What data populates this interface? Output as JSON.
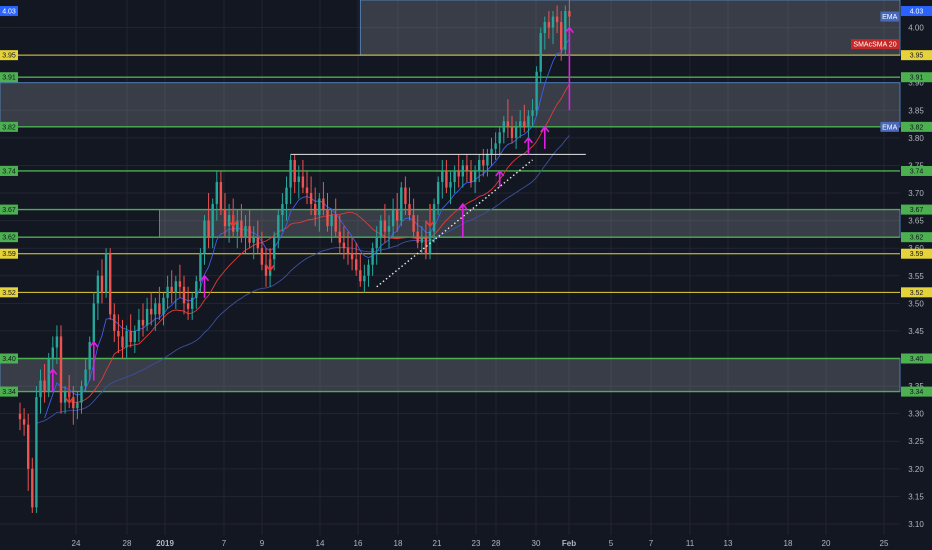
{
  "chart_data": {
    "type": "candlestick",
    "title": "",
    "xlabel": "",
    "ylabel": "",
    "ylim": [
      3.08,
      4.05
    ],
    "grid": true,
    "legend": "none",
    "colors": {
      "background": "#131722",
      "grid": "#232632",
      "up": "#26a69a",
      "down": "#ef5350",
      "ema_fast": "#3f5ee8",
      "ema_slow": "#3e4f9c",
      "sma20": "#e03b3b",
      "zone_fill": "#9aa0aa",
      "level_green": "#4caf50",
      "level_yellow": "#e6d23a",
      "arrow_magenta": "#e020e0",
      "arrow_red": "#e53935",
      "trend_white": "#e6e6e6"
    },
    "y_ticks": [
      "3.10",
      "3.15",
      "3.20",
      "3.25",
      "3.30",
      "3.35",
      "3.40",
      "3.45",
      "3.50",
      "3.55",
      "3.60",
      "3.65",
      "3.70",
      "3.75",
      "3.80",
      "3.85",
      "3.90",
      "3.95",
      "4.00"
    ],
    "x_ticks": [
      "24",
      "28",
      "2019",
      "7",
      "9",
      "14",
      "16",
      "18",
      "21",
      "23",
      "28",
      "30",
      "Feb",
      "5",
      "7",
      "11",
      "13",
      "18",
      "20",
      "25"
    ],
    "levels": [
      {
        "label": "4.03",
        "value": 4.03,
        "color": "#2962ff",
        "kind": "price"
      },
      {
        "label": "3.95",
        "value": 3.95,
        "color": "#e6d23a",
        "kind": "yellow"
      },
      {
        "label": "3.91",
        "value": 3.91,
        "color": "#4caf50",
        "kind": "green"
      },
      {
        "label": "3.82",
        "value": 3.82,
        "color": "#4caf50",
        "kind": "green"
      },
      {
        "label": "3.74",
        "value": 3.74,
        "color": "#4caf50",
        "kind": "green"
      },
      {
        "label": "3.67",
        "value": 3.67,
        "color": "#4caf50",
        "kind": "green"
      },
      {
        "label": "3.62",
        "value": 3.62,
        "color": "#4caf50",
        "kind": "green"
      },
      {
        "label": "3.59",
        "value": 3.59,
        "color": "#e6d23a",
        "kind": "yellow"
      },
      {
        "label": "3.52",
        "value": 3.52,
        "color": "#e6d23a",
        "kind": "yellow"
      },
      {
        "label": "3.40",
        "value": 3.4,
        "color": "#4caf50",
        "kind": "green"
      },
      {
        "label": "3.34",
        "value": 3.34,
        "color": "#4caf50",
        "kind": "green"
      }
    ],
    "zones": [
      {
        "from": 3.95,
        "to": 4.05,
        "start_index": 83
      },
      {
        "from": 3.82,
        "to": 3.9,
        "start_index": 0
      },
      {
        "from": 3.62,
        "to": 3.67,
        "start_index": 34
      },
      {
        "from": 3.34,
        "to": 3.4,
        "start_index": 0
      }
    ],
    "indicator_tags": [
      {
        "label": "EMA",
        "value": 4.02,
        "color": "#4a69b8"
      },
      {
        "label": "SMAcSMA 20",
        "value": 3.97,
        "color": "#c62828"
      },
      {
        "label": "EMA",
        "value": 3.82,
        "color": "#4a69b8"
      }
    ],
    "resistance_line": {
      "value": 3.77,
      "from_index": 66,
      "to_index": 138
    },
    "trendline": {
      "from_index": 87,
      "from_value": 3.53,
      "to_index": 125,
      "to_value": 3.76
    },
    "arrows_up": [
      {
        "index": 8,
        "from": 3.34,
        "to": 3.38
      },
      {
        "index": 18,
        "from": 3.36,
        "to": 3.43
      },
      {
        "index": 45,
        "from": 3.51,
        "to": 3.55
      },
      {
        "index": 108,
        "from": 3.62,
        "to": 3.68
      },
      {
        "index": 117,
        "from": 3.71,
        "to": 3.74
      },
      {
        "index": 124,
        "from": 3.77,
        "to": 3.8
      },
      {
        "index": 128,
        "from": 3.78,
        "to": 3.82
      },
      {
        "index": 134,
        "from": 3.85,
        "to": 4.0
      }
    ],
    "arrows_down": [
      {
        "index": 12,
        "from": 3.35,
        "to": 3.32
      },
      {
        "index": 52,
        "from": 3.67,
        "to": 3.64
      },
      {
        "index": 61,
        "from": 3.6,
        "to": 3.56
      },
      {
        "index": 100,
        "from": 3.68,
        "to": 3.64
      }
    ],
    "candles": [
      [
        3.3,
        3.32,
        3.27,
        3.29
      ],
      [
        3.29,
        3.31,
        3.26,
        3.28
      ],
      [
        3.28,
        3.3,
        3.16,
        3.2
      ],
      [
        3.2,
        3.22,
        3.12,
        3.13
      ],
      [
        3.13,
        3.35,
        3.12,
        3.33
      ],
      [
        3.33,
        3.38,
        3.3,
        3.36
      ],
      [
        3.36,
        3.39,
        3.32,
        3.34
      ],
      [
        3.34,
        3.41,
        3.33,
        3.4
      ],
      [
        3.4,
        3.44,
        3.37,
        3.42
      ],
      [
        3.42,
        3.46,
        3.39,
        3.44
      ],
      [
        3.44,
        3.46,
        3.3,
        3.32
      ],
      [
        3.32,
        3.35,
        3.3,
        3.34
      ],
      [
        3.34,
        3.37,
        3.31,
        3.33
      ],
      [
        3.33,
        3.35,
        3.28,
        3.31
      ],
      [
        3.31,
        3.34,
        3.29,
        3.32
      ],
      [
        3.32,
        3.36,
        3.3,
        3.35
      ],
      [
        3.35,
        3.4,
        3.34,
        3.38
      ],
      [
        3.38,
        3.44,
        3.36,
        3.43
      ],
      [
        3.43,
        3.52,
        3.41,
        3.5
      ],
      [
        3.5,
        3.56,
        3.47,
        3.55
      ],
      [
        3.55,
        3.58,
        3.5,
        3.52
      ],
      [
        3.52,
        3.6,
        3.51,
        3.59
      ],
      [
        3.59,
        3.6,
        3.47,
        3.48
      ],
      [
        3.48,
        3.5,
        3.43,
        3.45
      ],
      [
        3.45,
        3.48,
        3.41,
        3.44
      ],
      [
        3.44,
        3.47,
        3.4,
        3.42
      ],
      [
        3.42,
        3.46,
        3.4,
        3.45
      ],
      [
        3.45,
        3.48,
        3.42,
        3.43
      ],
      [
        3.43,
        3.46,
        3.41,
        3.45
      ],
      [
        3.45,
        3.49,
        3.43,
        3.47
      ],
      [
        3.47,
        3.5,
        3.44,
        3.46
      ],
      [
        3.46,
        3.51,
        3.45,
        3.49
      ],
      [
        3.49,
        3.52,
        3.46,
        3.48
      ],
      [
        3.48,
        3.51,
        3.45,
        3.5
      ],
      [
        3.5,
        3.53,
        3.47,
        3.48
      ],
      [
        3.48,
        3.52,
        3.46,
        3.51
      ],
      [
        3.51,
        3.55,
        3.49,
        3.53
      ],
      [
        3.53,
        3.56,
        3.5,
        3.52
      ],
      [
        3.52,
        3.55,
        3.49,
        3.54
      ],
      [
        3.54,
        3.57,
        3.51,
        3.53
      ],
      [
        3.53,
        3.55,
        3.48,
        3.5
      ],
      [
        3.5,
        3.53,
        3.47,
        3.49
      ],
      [
        3.49,
        3.52,
        3.47,
        3.51
      ],
      [
        3.51,
        3.55,
        3.49,
        3.54
      ],
      [
        3.54,
        3.6,
        3.52,
        3.59
      ],
      [
        3.59,
        3.66,
        3.57,
        3.65
      ],
      [
        3.65,
        3.7,
        3.6,
        3.62
      ],
      [
        3.62,
        3.69,
        3.6,
        3.68
      ],
      [
        3.68,
        3.74,
        3.65,
        3.72
      ],
      [
        3.72,
        3.74,
        3.66,
        3.67
      ],
      [
        3.67,
        3.7,
        3.62,
        3.64
      ],
      [
        3.64,
        3.68,
        3.61,
        3.66
      ],
      [
        3.66,
        3.69,
        3.62,
        3.63
      ],
      [
        3.63,
        3.67,
        3.6,
        3.65
      ],
      [
        3.65,
        3.68,
        3.61,
        3.62
      ],
      [
        3.62,
        3.66,
        3.59,
        3.64
      ],
      [
        3.64,
        3.67,
        3.6,
        3.61
      ],
      [
        3.61,
        3.64,
        3.58,
        3.62
      ],
      [
        3.62,
        3.65,
        3.59,
        3.6
      ],
      [
        3.6,
        3.63,
        3.56,
        3.57
      ],
      [
        3.57,
        3.6,
        3.53,
        3.55
      ],
      [
        3.55,
        3.59,
        3.53,
        3.58
      ],
      [
        3.58,
        3.63,
        3.56,
        3.62
      ],
      [
        3.62,
        3.67,
        3.6,
        3.66
      ],
      [
        3.66,
        3.7,
        3.63,
        3.68
      ],
      [
        3.68,
        3.73,
        3.65,
        3.71
      ],
      [
        3.71,
        3.77,
        3.68,
        3.76
      ],
      [
        3.76,
        3.77,
        3.7,
        3.72
      ],
      [
        3.72,
        3.75,
        3.69,
        3.73
      ],
      [
        3.73,
        3.76,
        3.7,
        3.71
      ],
      [
        3.71,
        3.74,
        3.68,
        3.7
      ],
      [
        3.7,
        3.73,
        3.66,
        3.68
      ],
      [
        3.68,
        3.71,
        3.64,
        3.66
      ],
      [
        3.66,
        3.7,
        3.63,
        3.69
      ],
      [
        3.69,
        3.72,
        3.66,
        3.67
      ],
      [
        3.67,
        3.7,
        3.63,
        3.64
      ],
      [
        3.64,
        3.67,
        3.61,
        3.66
      ],
      [
        3.66,
        3.69,
        3.62,
        3.63
      ],
      [
        3.63,
        3.66,
        3.59,
        3.61
      ],
      [
        3.61,
        3.64,
        3.58,
        3.6
      ],
      [
        3.6,
        3.63,
        3.57,
        3.59
      ],
      [
        3.59,
        3.62,
        3.56,
        3.58
      ],
      [
        3.58,
        3.61,
        3.55,
        3.56
      ],
      [
        3.56,
        3.59,
        3.53,
        3.54
      ],
      [
        3.54,
        3.57,
        3.52,
        3.55
      ],
      [
        3.55,
        3.58,
        3.53,
        3.57
      ],
      [
        3.57,
        3.61,
        3.55,
        3.6
      ],
      [
        3.6,
        3.64,
        3.57,
        3.62
      ],
      [
        3.62,
        3.66,
        3.59,
        3.65
      ],
      [
        3.65,
        3.68,
        3.61,
        3.63
      ],
      [
        3.63,
        3.66,
        3.6,
        3.64
      ],
      [
        3.64,
        3.69,
        3.62,
        3.67
      ],
      [
        3.67,
        3.7,
        3.63,
        3.65
      ],
      [
        3.65,
        3.72,
        3.64,
        3.71
      ],
      [
        3.71,
        3.73,
        3.66,
        3.68
      ],
      [
        3.68,
        3.71,
        3.65,
        3.66
      ],
      [
        3.66,
        3.69,
        3.62,
        3.63
      ],
      [
        3.63,
        3.66,
        3.6,
        3.61
      ],
      [
        3.61,
        3.64,
        3.59,
        3.62
      ],
      [
        3.62,
        3.65,
        3.58,
        3.59
      ],
      [
        3.59,
        3.64,
        3.58,
        3.63
      ],
      [
        3.63,
        3.69,
        3.61,
        3.68
      ],
      [
        3.68,
        3.73,
        3.66,
        3.72
      ],
      [
        3.72,
        3.76,
        3.69,
        3.74
      ],
      [
        3.74,
        3.76,
        3.7,
        3.71
      ],
      [
        3.71,
        3.74,
        3.68,
        3.72
      ],
      [
        3.72,
        3.75,
        3.7,
        3.74
      ],
      [
        3.74,
        3.77,
        3.71,
        3.73
      ],
      [
        3.73,
        3.76,
        3.71,
        3.75
      ],
      [
        3.75,
        3.77,
        3.72,
        3.74
      ],
      [
        3.74,
        3.76,
        3.71,
        3.72
      ],
      [
        3.72,
        3.75,
        3.7,
        3.74
      ],
      [
        3.74,
        3.77,
        3.72,
        3.76
      ],
      [
        3.76,
        3.78,
        3.73,
        3.75
      ],
      [
        3.75,
        3.78,
        3.73,
        3.77
      ],
      [
        3.77,
        3.8,
        3.75,
        3.78
      ],
      [
        3.78,
        3.81,
        3.76,
        3.79
      ],
      [
        3.79,
        3.82,
        3.77,
        3.81
      ],
      [
        3.81,
        3.84,
        3.79,
        3.83
      ],
      [
        3.83,
        3.87,
        3.8,
        3.82
      ],
      [
        3.82,
        3.84,
        3.79,
        3.8
      ],
      [
        3.8,
        3.83,
        3.78,
        3.82
      ],
      [
        3.82,
        3.85,
        3.8,
        3.83
      ],
      [
        3.83,
        3.86,
        3.81,
        3.82
      ],
      [
        3.82,
        3.85,
        3.8,
        3.84
      ],
      [
        3.84,
        3.87,
        3.82,
        3.85
      ],
      [
        3.85,
        3.93,
        3.84,
        3.92
      ],
      [
        3.92,
        4.0,
        3.9,
        3.99
      ],
      [
        3.99,
        4.02,
        3.96,
        4.01
      ],
      [
        4.01,
        4.03,
        3.98,
        4.0
      ],
      [
        4.0,
        4.03,
        3.97,
        4.02
      ],
      [
        4.02,
        4.04,
        3.99,
        4.01
      ],
      [
        4.01,
        4.03,
        3.94,
        3.96
      ],
      [
        3.96,
        4.04,
        3.95,
        4.03
      ],
      [
        4.03,
        4.05,
        4.0,
        4.02
      ]
    ]
  }
}
